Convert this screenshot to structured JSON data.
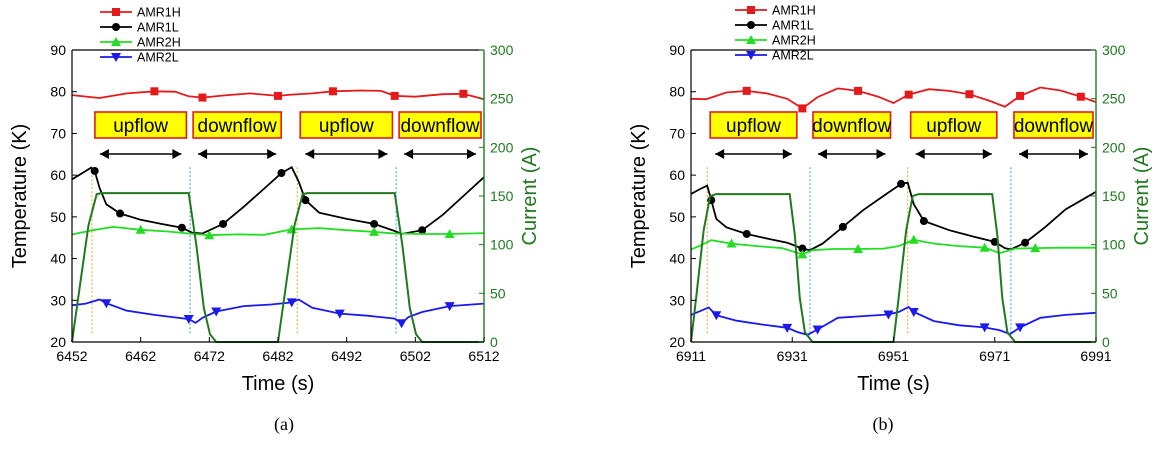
{
  "chart_data": [
    {
      "type": "line",
      "panel_label": "(a)",
      "xlabel": "Time (s)",
      "ylabel": "Temperature (K)",
      "y2label": "Current (A)",
      "xlim": [
        6452,
        6512
      ],
      "ylim": [
        20,
        90
      ],
      "y2lim": [
        0,
        300
      ],
      "xticks": [
        "6452",
        "6462",
        "6472",
        "6482",
        "6492",
        "6502",
        "6512"
      ],
      "yticks": [
        "20",
        "30",
        "40",
        "50",
        "60",
        "70",
        "80",
        "90"
      ],
      "y2ticks": [
        "0",
        "50",
        "100",
        "150",
        "200",
        "250",
        "300"
      ],
      "legend": [
        "AMR1H",
        "AMR1L",
        "AMR2H",
        "AMR2L"
      ],
      "legend_position": "top-left",
      "annotations": [
        {
          "text": "upflow",
          "x_start": 6454.9,
          "x_end": 6469.1
        },
        {
          "text": "downflow",
          "x_start": 6469.2,
          "x_end": 6482.9
        },
        {
          "text": "upflow",
          "x_start": 6484.8,
          "x_end": 6499.1
        },
        {
          "text": "downflow",
          "x_start": 6499.2,
          "x_end": 6512
        }
      ],
      "series": [
        {
          "name": "AMR1H",
          "color": "#e31a1c",
          "marker": "square",
          "axis": "left",
          "x": [
            6452,
            6456,
            6460,
            6464,
            6467,
            6469,
            6471,
            6474,
            6478,
            6482,
            6484,
            6487,
            6490,
            6494,
            6497,
            6499,
            6502,
            6506,
            6509,
            6512
          ],
          "y": [
            79.2,
            78.5,
            79.6,
            80.1,
            80.0,
            78.9,
            78.6,
            79.1,
            79.6,
            79.0,
            79.3,
            79.6,
            80.1,
            80.3,
            80.2,
            79.0,
            78.8,
            79.4,
            79.5,
            78.2
          ]
        },
        {
          "name": "AMR1L",
          "color": "#000000",
          "marker": "circle",
          "axis": "left",
          "x": [
            6452,
            6453.5,
            6454.8,
            6455.3,
            6456,
            6457,
            6459,
            6462,
            6465,
            6468,
            6469.5,
            6471,
            6474,
            6477,
            6480,
            6482.5,
            6484,
            6485,
            6486,
            6488,
            6492,
            6496,
            6499,
            6500,
            6503,
            6506,
            6509,
            6512
          ],
          "y": [
            59,
            60.5,
            61.8,
            61,
            57,
            53,
            50.8,
            49.3,
            48.3,
            47.4,
            46.2,
            46.0,
            48.3,
            52.4,
            56.8,
            60.5,
            61.9,
            58.5,
            54,
            51,
            49.5,
            48.3,
            46.6,
            45.9,
            46.8,
            50.5,
            55,
            59.5
          ]
        },
        {
          "name": "AMR2H",
          "color": "#22dd22",
          "marker": "triangle-up",
          "axis": "left",
          "x": [
            6452,
            6455,
            6458,
            6462,
            6466,
            6469,
            6472,
            6476,
            6480,
            6484,
            6488,
            6492,
            6496,
            6499,
            6503,
            6507,
            6512
          ],
          "y": [
            45.8,
            46.8,
            47.6,
            46.9,
            46.5,
            46.0,
            45.6,
            45.8,
            45.7,
            47.0,
            47.3,
            46.8,
            46.4,
            46.0,
            45.9,
            45.9,
            46.1
          ]
        },
        {
          "name": "AMR2L",
          "color": "#1a1aee",
          "marker": "triangle-down",
          "axis": "left",
          "x": [
            6452,
            6454,
            6456,
            6457,
            6460,
            6464,
            6469,
            6470,
            6471,
            6473,
            6477,
            6481,
            6484,
            6485,
            6487,
            6491,
            6495,
            6499,
            6500,
            6501,
            6503,
            6507,
            6512
          ],
          "y": [
            28.8,
            29.2,
            30.2,
            29.3,
            27.5,
            26.5,
            25.5,
            24.6,
            25.8,
            27.3,
            28.6,
            29.0,
            29.5,
            30.2,
            28.2,
            26.8,
            26.3,
            25.6,
            24.5,
            26.0,
            27.2,
            28.6,
            29.2
          ]
        },
        {
          "name": "Current",
          "color": "#1f7a1f",
          "marker": "none",
          "axis": "right",
          "x": [
            6452,
            6453.2,
            6454.4,
            6455.6,
            6456.3,
            6469,
            6470.1,
            6471.2,
            6472.1,
            6473,
            6482,
            6483.2,
            6484.4,
            6485.6,
            6486.3,
            6499,
            6500.1,
            6501.2,
            6502.1,
            6503,
            6512
          ],
          "y": [
            0,
            60,
            120,
            152,
            153,
            153,
            100,
            35,
            8,
            0,
            0,
            60,
            120,
            152,
            153,
            153,
            100,
            35,
            8,
            0,
            0
          ]
        }
      ]
    },
    {
      "type": "line",
      "panel_label": "(b)",
      "xlabel": "Time (s)",
      "ylabel": "Temperature (K)",
      "y2label": "Current (A)",
      "xlim": [
        6911,
        6991
      ],
      "ylim": [
        20,
        90
      ],
      "y2lim": [
        0,
        300
      ],
      "xticks": [
        "6911",
        "6931",
        "6951",
        "6971",
        "6991"
      ],
      "yticks": [
        "20",
        "30",
        "40",
        "50",
        "60",
        "70",
        "80",
        "90"
      ],
      "y2ticks": [
        "0",
        "50",
        "100",
        "150",
        "200",
        "250",
        "300"
      ],
      "legend": [
        "AMR1H",
        "AMR1L",
        "AMR2H",
        "AMR2L"
      ],
      "legend_position": "top-left",
      "annotations": [
        {
          "text": "upflow",
          "x_start": 6914.2,
          "x_end": 6932.5
        },
        {
          "text": "downflow",
          "x_start": 6934.5,
          "x_end": 6951
        },
        {
          "text": "upflow",
          "x_start": 6953.8,
          "x_end": 6972
        },
        {
          "text": "downflow",
          "x_start": 6974.2,
          "x_end": 6991
        }
      ],
      "series": [
        {
          "name": "AMR1H",
          "color": "#e31a1c",
          "marker": "square",
          "axis": "left",
          "x": [
            6911,
            6914,
            6918,
            6922,
            6926,
            6930,
            6933,
            6936,
            6940,
            6944,
            6948,
            6951,
            6954,
            6958,
            6962,
            6966,
            6970,
            6973,
            6976,
            6980,
            6984,
            6988,
            6991
          ],
          "y": [
            78.3,
            78.2,
            79.8,
            80.2,
            79.6,
            78.3,
            76.0,
            78.7,
            80.8,
            80.2,
            78.8,
            77.3,
            79.3,
            80.6,
            80.2,
            79.4,
            77.8,
            76.4,
            79.0,
            81.0,
            80.3,
            78.8,
            77.5
          ]
        },
        {
          "name": "AMR1L",
          "color": "#000000",
          "marker": "circle",
          "axis": "left",
          "x": [
            6911,
            6913,
            6914.2,
            6915,
            6916,
            6918,
            6922,
            6926,
            6930,
            6933,
            6934.5,
            6937,
            6941,
            6945,
            6949,
            6952.5,
            6953.8,
            6955,
            6957,
            6962,
            6967,
            6971,
            6973,
            6974.2,
            6977,
            6981,
            6985,
            6991
          ],
          "y": [
            55.5,
            56.8,
            57.5,
            54,
            49.5,
            47.5,
            45.9,
            44.8,
            43.8,
            42.4,
            42.0,
            43.6,
            47.6,
            51.6,
            55.0,
            57.9,
            58.2,
            53,
            49,
            46.8,
            45.2,
            44.0,
            42.5,
            42.2,
            43.8,
            47.6,
            51.8,
            56.0
          ]
        },
        {
          "name": "AMR2H",
          "color": "#22dd22",
          "marker": "triangle-up",
          "axis": "left",
          "x": [
            6911,
            6913,
            6915,
            6919,
            6924,
            6929,
            6933,
            6935,
            6939,
            6944,
            6949,
            6952,
            6955,
            6959,
            6964,
            6969,
            6972,
            6975,
            6979,
            6984,
            6991
          ],
          "y": [
            42.2,
            43.2,
            44.4,
            43.6,
            43.0,
            42.5,
            41.0,
            42.0,
            42.3,
            42.3,
            42.4,
            43.0,
            44.5,
            43.6,
            43.0,
            42.6,
            41.3,
            42.4,
            42.5,
            42.6,
            42.6
          ]
        },
        {
          "name": "AMR2L",
          "color": "#1a1aee",
          "marker": "triangle-down",
          "axis": "left",
          "x": [
            6911,
            6913,
            6914.5,
            6916,
            6920,
            6925,
            6930,
            6932,
            6934,
            6936,
            6940,
            6945,
            6950,
            6952,
            6954,
            6955,
            6959,
            6964,
            6969,
            6972,
            6974,
            6976,
            6980,
            6985,
            6991
          ],
          "y": [
            26.5,
            27.5,
            28.3,
            26.4,
            25.1,
            24.2,
            23.4,
            22.4,
            21.7,
            23.0,
            25.8,
            26.2,
            26.6,
            27.2,
            28.4,
            27.2,
            25.0,
            24.0,
            23.5,
            22.8,
            21.9,
            23.5,
            25.8,
            26.5,
            27.0
          ]
        },
        {
          "name": "Current",
          "color": "#1f7a1f",
          "marker": "none",
          "axis": "right",
          "x": [
            6911,
            6912,
            6913.5,
            6914.8,
            6916,
            6930.5,
            6931.5,
            6932.5,
            6933.5,
            6935,
            6951,
            6952,
            6953.5,
            6954.8,
            6956,
            6970.5,
            6971.5,
            6972.5,
            6973.5,
            6975,
            6991
          ],
          "y": [
            0,
            45,
            115,
            150,
            152,
            152,
            110,
            45,
            10,
            0,
            0,
            45,
            115,
            150,
            152,
            152,
            110,
            45,
            10,
            0,
            0
          ]
        }
      ]
    }
  ]
}
